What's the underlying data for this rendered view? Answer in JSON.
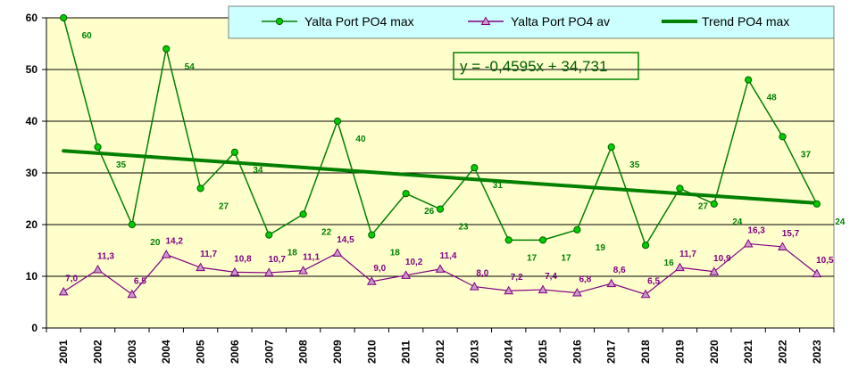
{
  "chart_data": {
    "type": "line",
    "title": "",
    "xlabel": "",
    "ylabel": "",
    "ylim": [
      0,
      60
    ],
    "yticks": [
      0,
      10,
      20,
      30,
      40,
      50,
      60
    ],
    "grid": true,
    "legend_position": "top-right",
    "categories": [
      "2001",
      "2002",
      "2003",
      "2004",
      "2005",
      "2006",
      "2007",
      "2008",
      "2009",
      "2010",
      "2011",
      "2012",
      "2013",
      "2014",
      "2015",
      "2016",
      "2017",
      "2018",
      "2019",
      "2020",
      "2021",
      "2022",
      "2023"
    ],
    "series": [
      {
        "name": "Yalta Port PO4 max",
        "color": "#008000",
        "marker": "circle",
        "values": [
          60,
          35,
          20,
          54,
          27,
          34,
          18,
          22,
          40,
          18,
          26,
          23,
          31,
          17,
          17,
          19,
          35,
          16,
          27,
          24,
          48,
          37,
          24
        ],
        "labels": [
          "60",
          "35",
          "20",
          "54",
          "27",
          "34",
          "18",
          "22",
          "40",
          "18",
          "26",
          "23",
          "31",
          "17",
          "17",
          "19",
          "35",
          "16",
          "27",
          "24",
          "48",
          "37",
          "24"
        ]
      },
      {
        "name": "Yalta Port PO4 av",
        "color": "#800080",
        "marker": "triangle",
        "values": [
          7.0,
          11.3,
          6.5,
          14.2,
          11.7,
          10.8,
          10.7,
          11.1,
          14.5,
          9.0,
          10.2,
          11.4,
          8.0,
          7.2,
          7.4,
          6.8,
          8.6,
          6.5,
          11.7,
          10.9,
          16.3,
          15.7,
          10.5
        ],
        "labels": [
          "7,0",
          "11,3",
          "6,5",
          "14,2",
          "11,7",
          "10,8",
          "10,7",
          "11,1",
          "14,5",
          "9,0",
          "10,2",
          "11,4",
          "8,0",
          "7,2",
          "7,4",
          "6,8",
          "8,6",
          "6,5",
          "11,7",
          "10,9",
          "16,3",
          "15,7",
          "10,5"
        ]
      }
    ],
    "trendline": {
      "name": "Trend PO4 max",
      "color": "#008000",
      "slope": -0.4595,
      "intercept": 34.731,
      "equation": "y = -0,4595x + 34,731"
    },
    "colors": {
      "plot_bg": "#FFFFCC",
      "legend_bg": "#CCFFFF",
      "gridline": "#000000"
    }
  }
}
